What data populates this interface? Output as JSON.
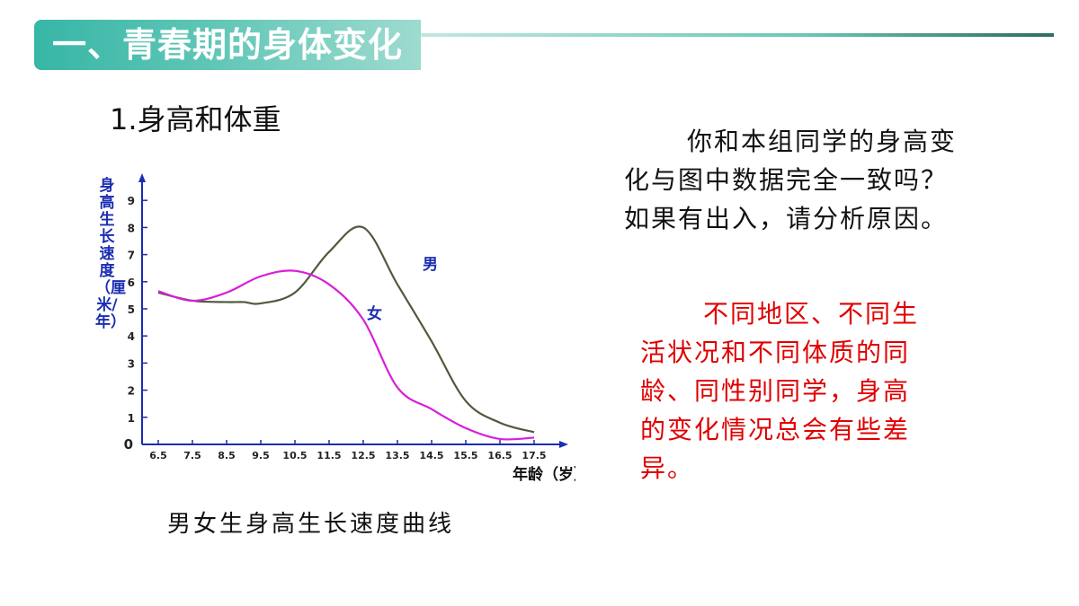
{
  "slide": {
    "title": "一、青春期的身体变化",
    "subtitle": "1.身高和体重",
    "question_line1": "你和本组同学的身高变",
    "question_line2": "化与图中数据完全一致吗？",
    "question_line3": "如果有出入，请分析原因。",
    "answer_line1": "不同地区、不同生",
    "answer_line2": "活状况和不同体质的同",
    "answer_line3": "龄、同性别同学，身高",
    "answer_line4": "的变化情况总会有些差",
    "answer_line5": "异。",
    "caption": "男女生身高生长速度曲线"
  },
  "colors": {
    "accent": "#37b6a6",
    "axis": "#1b2db0",
    "male_line": "#4f5a3c",
    "female_line": "#d81ed8",
    "answer_text": "#e00000"
  },
  "chart_data": {
    "type": "line",
    "ylabel": "身高生长速度（厘米/年）",
    "xlabel": "年龄（岁）",
    "x": [
      6.5,
      7.5,
      8.5,
      9.5,
      10.5,
      11.5,
      12.5,
      13.5,
      14.5,
      15.5,
      16.5,
      17.5
    ],
    "x_ticks": [
      "6.5",
      "7.5",
      "8.5",
      "9.5",
      "10.5",
      "11.5",
      "12.5",
      "13.5",
      "14.5",
      "15.5",
      "16.5",
      "17.5"
    ],
    "y_ticks": [
      "0",
      "1",
      "2",
      "3",
      "4",
      "5",
      "6",
      "7",
      "8",
      "9"
    ],
    "ylim": [
      0,
      9.5
    ],
    "xlim": [
      6.5,
      17.5
    ],
    "series": [
      {
        "name": "男",
        "x": [
          6.5,
          7.5,
          8.5,
          9.0,
          9.5,
          10.5,
          11.5,
          12.5,
          13.5,
          14.5,
          15.5,
          16.5,
          17.5
        ],
        "values": [
          5.6,
          5.3,
          5.25,
          5.25,
          5.2,
          5.6,
          7.1,
          8.0,
          5.9,
          3.8,
          1.6,
          0.8,
          0.45
        ]
      },
      {
        "name": "女",
        "x": [
          6.5,
          7.5,
          8.5,
          9.5,
          10.5,
          11.5,
          12.5,
          13.5,
          14.5,
          15.5,
          16.5,
          17.5
        ],
        "values": [
          5.65,
          5.3,
          5.6,
          6.2,
          6.4,
          5.9,
          4.6,
          2.1,
          1.3,
          0.6,
          0.2,
          0.25
        ]
      }
    ],
    "series_labels": [
      "男",
      "女"
    ]
  }
}
